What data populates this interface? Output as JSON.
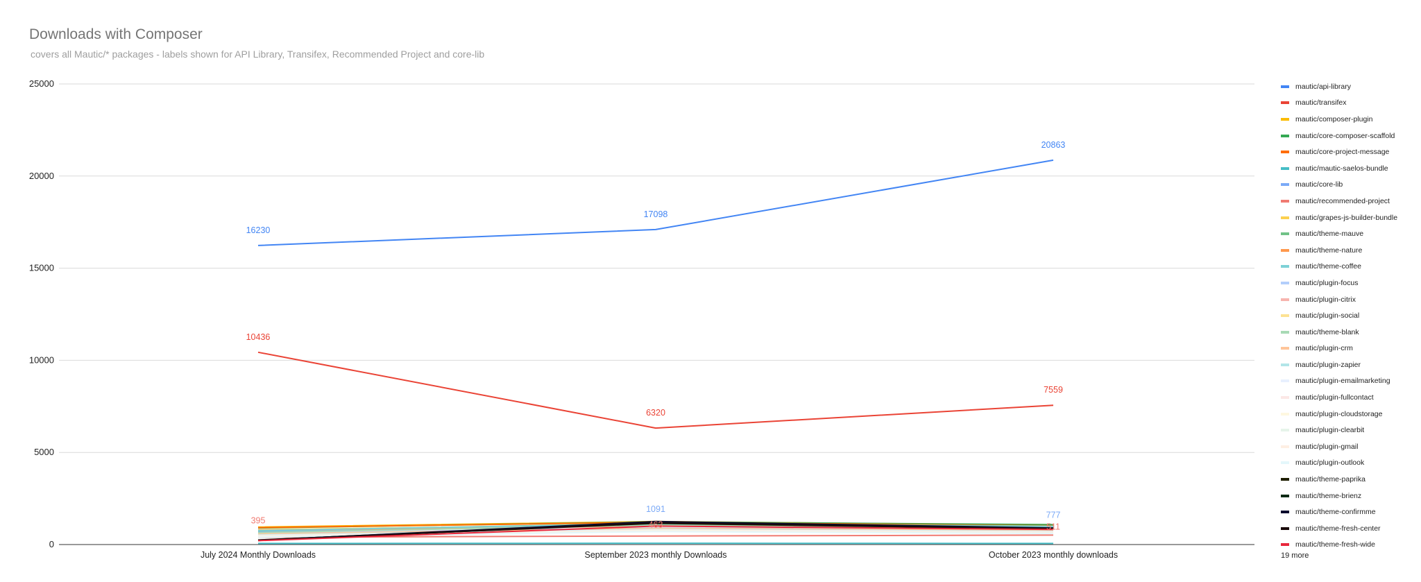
{
  "chart_data": {
    "type": "line",
    "title": "Downloads with Composer",
    "subtitle": " covers all Mautic/* packages -  labels shown for API Library, Transifex, Recommended Project and core-lib",
    "categories": [
      "July 2024 Monthly Downloads",
      "September 2023 monthly Downloads",
      "October 2023 monthly downloads"
    ],
    "ylim": [
      0,
      25000
    ],
    "yticks": [
      0,
      5000,
      10000,
      15000,
      20000,
      25000
    ],
    "grid": true,
    "legend_position": "right",
    "legend_more": "19 more",
    "series": [
      {
        "name": "mautic/api-library",
        "color": "#4285f4",
        "values": [
          16230,
          17098,
          20863
        ],
        "labels": [
          "16230",
          "17098",
          "20863"
        ]
      },
      {
        "name": "mautic/transifex",
        "color": "#ea4335",
        "values": [
          10436,
          6320,
          7559
        ],
        "labels": [
          "10436",
          "6320",
          "7559"
        ]
      },
      {
        "name": "mautic/composer-plugin",
        "color": "#fbbc04",
        "values": [
          950,
          1250,
          1050
        ]
      },
      {
        "name": "mautic/core-composer-scaffold",
        "color": "#34a853",
        "values": [
          900,
          1230,
          1080
        ]
      },
      {
        "name": "mautic/core-project-message",
        "color": "#ff6d01",
        "values": [
          920,
          1210,
          1020
        ]
      },
      {
        "name": "mautic/mautic-saelos-bundle",
        "color": "#46bdc6",
        "values": [
          60,
          70,
          60
        ]
      },
      {
        "name": "mautic/core-lib",
        "color": "#7baaf7",
        "values": [
          700,
          1091,
          777
        ],
        "labels": [
          "",
          "1091",
          "777"
        ]
      },
      {
        "name": "mautic/recommended-project",
        "color": "#f07b72",
        "values": [
          395,
          463,
          511
        ],
        "labels": [
          "395",
          "463",
          "511"
        ]
      },
      {
        "name": "mautic/grapes-js-builder-bundle",
        "color": "#fcd04f",
        "values": [
          800,
          1100,
          950
        ]
      },
      {
        "name": "mautic/theme-mauve",
        "color": "#71c287",
        "values": [
          750,
          1150,
          1000
        ]
      },
      {
        "name": "mautic/theme-nature",
        "color": "#ff994d",
        "values": [
          780,
          1000,
          900
        ]
      },
      {
        "name": "mautic/theme-coffee",
        "color": "#7ed1d7",
        "values": [
          760,
          1120,
          980
        ]
      },
      {
        "name": "mautic/plugin-focus",
        "color": "#b3cefb",
        "values": [
          600,
          900,
          800
        ]
      },
      {
        "name": "mautic/plugin-citrix",
        "color": "#f7b4ae",
        "values": [
          580,
          880,
          780
        ]
      },
      {
        "name": "mautic/plugin-social",
        "color": "#fde293",
        "values": [
          560,
          860,
          760
        ]
      },
      {
        "name": "mautic/theme-blank",
        "color": "#a8dab5",
        "values": [
          650,
          1050,
          900
        ]
      },
      {
        "name": "mautic/plugin-crm",
        "color": "#ffc599",
        "values": [
          540,
          840,
          740
        ]
      },
      {
        "name": "mautic/plugin-zapier",
        "color": "#b2e5e8",
        "values": [
          520,
          820,
          720
        ]
      },
      {
        "name": "mautic/plugin-emailmarketing",
        "color": "#e8f0fe",
        "values": [
          500,
          800,
          700
        ]
      },
      {
        "name": "mautic/plugin-fullcontact",
        "color": "#fce8e6",
        "values": [
          480,
          780,
          680
        ]
      },
      {
        "name": "mautic/plugin-cloudstorage",
        "color": "#fef7e0",
        "values": [
          460,
          760,
          660
        ]
      },
      {
        "name": "mautic/plugin-clearbit",
        "color": "#e6f4ea",
        "values": [
          440,
          740,
          640
        ]
      },
      {
        "name": "mautic/plugin-gmail",
        "color": "#feefe3",
        "values": [
          420,
          720,
          620
        ]
      },
      {
        "name": "mautic/plugin-outlook",
        "color": "#e4f7fb",
        "values": [
          400,
          700,
          600
        ]
      },
      {
        "name": "mautic/theme-paprika",
        "color": "#1f1f00",
        "values": [
          250,
          1150,
          850
        ]
      },
      {
        "name": "mautic/theme-brienz",
        "color": "#0d2a14",
        "values": [
          240,
          1200,
          880
        ]
      },
      {
        "name": "mautic/theme-confirmme",
        "color": "#0b0b2e",
        "values": [
          230,
          1250,
          900
        ]
      },
      {
        "name": "mautic/theme-fresh-center",
        "color": "#1a0a0a",
        "values": [
          220,
          1180,
          860
        ]
      },
      {
        "name": "mautic/theme-fresh-wide",
        "color": "#e8283c",
        "values": [
          210,
          1000,
          820
        ]
      }
    ]
  }
}
